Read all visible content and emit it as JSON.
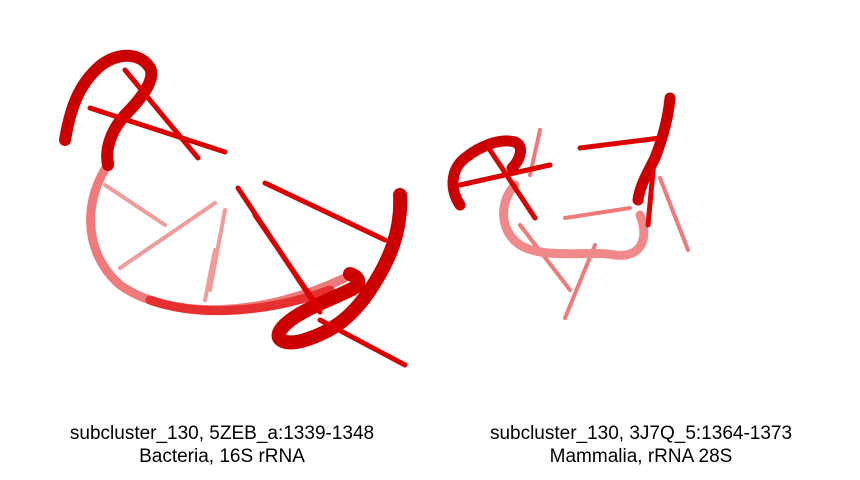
{
  "panels": [
    {
      "id": "5ZEB",
      "caption_line1": "subcluster_130, 5ZEB_a:1339-1348",
      "caption_line2": "Bacteria, 16S rRNA",
      "color": "#dd0000"
    },
    {
      "id": "3J7Q",
      "caption_line1": "subcluster_130, 3J7Q_5:1364-1373",
      "caption_line2": "Mammalia, rRNA 28S",
      "color": "#dd0000"
    }
  ],
  "colors": {
    "backbone": "#dd0000",
    "backbone_faded": "#f08080",
    "background": "#ffffff",
    "text": "#000000"
  }
}
